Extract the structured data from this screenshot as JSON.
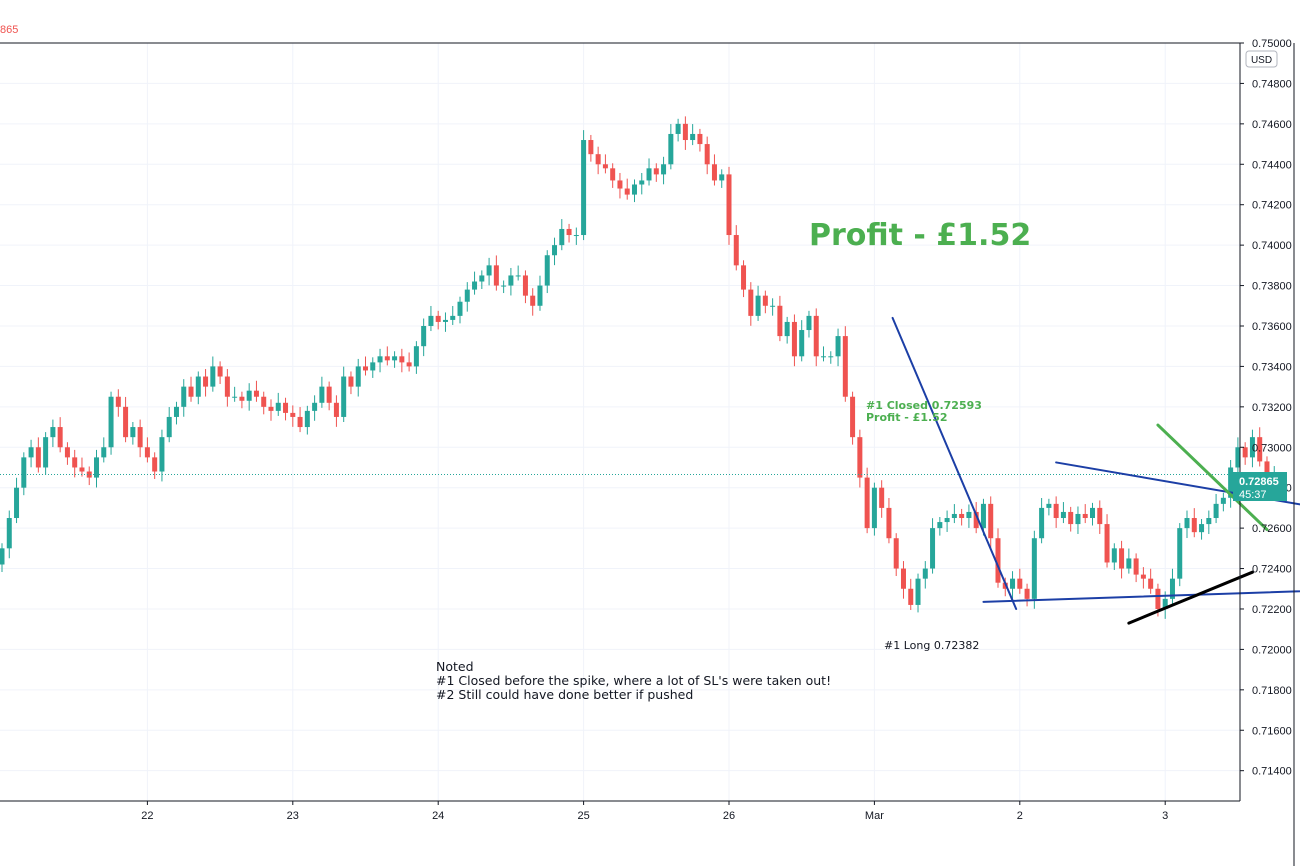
{
  "header": {
    "last_value_fragment": "865"
  },
  "currency_badge": "USD",
  "colors": {
    "up": "#26a69a",
    "down": "#ef5350",
    "trendline": "#1c3fa6",
    "entry_line": "#000000",
    "exit_line": "#4caf50",
    "profit_text": "#4caf50",
    "price_tag": "#26a69a",
    "grid": "#f0f3fa"
  },
  "annotations": {
    "profit_title": "Profit - £1.52",
    "close_line1": "#1 Closed 0.72593",
    "close_line2": "Profit - £1.52",
    "long_label": "#1 Long 0.72382",
    "notes": [
      "Noted",
      "#1  Closed before the spike, where a lot of SL's were taken out!",
      "#2  Still could have done better if pushed"
    ]
  },
  "price_tag": {
    "price": "0.72865",
    "countdown": "45:37"
  },
  "chart_data": {
    "type": "candlestick",
    "title": "",
    "y_axis_side": "right",
    "ylim": [
      0.7125,
      0.75
    ],
    "y_ticks": [
      "0.75000",
      "0.74800",
      "0.74600",
      "0.74400",
      "0.74200",
      "0.74000",
      "0.73800",
      "0.73600",
      "0.73400",
      "0.73200",
      "0.73000",
      "0.72800",
      "0.72600",
      "0.72400",
      "0.72200",
      "0.72000",
      "0.71800",
      "0.71600",
      "0.71400"
    ],
    "x_ticks": [
      {
        "label": "22",
        "index": 20
      },
      {
        "label": "23",
        "index": 40
      },
      {
        "label": "24",
        "index": 60
      },
      {
        "label": "25",
        "index": 80
      },
      {
        "label": "26",
        "index": 100
      },
      {
        "label": "Mar",
        "index": 120
      },
      {
        "label": "2",
        "index": 140
      },
      {
        "label": "3",
        "index": 160
      }
    ],
    "last_price": 0.72865,
    "close_series": [
      0.725,
      0.7265,
      0.728,
      0.7295,
      0.73,
      0.729,
      0.7305,
      0.731,
      0.73,
      0.7295,
      0.729,
      0.7288,
      0.7285,
      0.7295,
      0.73,
      0.7325,
      0.732,
      0.7305,
      0.731,
      0.73,
      0.7295,
      0.7288,
      0.7305,
      0.7315,
      0.732,
      0.733,
      0.7325,
      0.7335,
      0.733,
      0.734,
      0.7335,
      0.7325,
      0.7325,
      0.7323,
      0.7328,
      0.7325,
      0.732,
      0.7318,
      0.7322,
      0.7317,
      0.7315,
      0.731,
      0.7318,
      0.7322,
      0.733,
      0.7322,
      0.7315,
      0.7335,
      0.733,
      0.734,
      0.7338,
      0.7342,
      0.7345,
      0.7343,
      0.7345,
      0.7342,
      0.734,
      0.735,
      0.736,
      0.7365,
      0.7362,
      0.7363,
      0.7365,
      0.7372,
      0.7378,
      0.7382,
      0.7385,
      0.739,
      0.738,
      0.738,
      0.7385,
      0.7385,
      0.7375,
      0.737,
      0.738,
      0.7395,
      0.74,
      0.7408,
      0.7405,
      0.7405,
      0.7452,
      0.7445,
      0.744,
      0.7438,
      0.7432,
      0.7428,
      0.7425,
      0.743,
      0.7432,
      0.7438,
      0.7435,
      0.744,
      0.7455,
      0.746,
      0.7452,
      0.7455,
      0.745,
      0.744,
      0.7432,
      0.7435,
      0.7405,
      0.739,
      0.7378,
      0.7365,
      0.7375,
      0.737,
      0.737,
      0.7355,
      0.7362,
      0.7345,
      0.7358,
      0.7365,
      0.7345,
      0.7345,
      0.7345,
      0.7355,
      0.7325,
      0.7305,
      0.7285,
      0.726,
      0.728,
      0.727,
      0.7255,
      0.724,
      0.723,
      0.7222,
      0.7235,
      0.724,
      0.726,
      0.7263,
      0.7265,
      0.7267,
      0.7265,
      0.7268,
      0.726,
      0.7272,
      0.7255,
      0.7233,
      0.723,
      0.7235,
      0.723,
      0.7225,
      0.7255,
      0.727,
      0.7272,
      0.7265,
      0.7268,
      0.7262,
      0.7267,
      0.7265,
      0.727,
      0.7262,
      0.7243,
      0.725,
      0.724,
      0.7245,
      0.7237,
      0.7235,
      0.723,
      0.722,
      0.7225,
      0.7235,
      0.726,
      0.7265,
      0.7258,
      0.7262,
      0.7265,
      0.7272,
      0.7275,
      0.729,
      0.73,
      0.7295,
      0.7305,
      0.7293,
      0.7285,
      0.7287
    ],
    "trendlines": [
      {
        "name": "descending-trendline",
        "from": {
          "index": 122.5,
          "price": 0.7364
        },
        "to": {
          "index": 139.5,
          "price": 0.722
        }
      },
      {
        "name": "upper-triangle-line",
        "from": {
          "index": 145,
          "price": 0.72925
        },
        "to": {
          "index": 193,
          "price": 0.72628
        }
      },
      {
        "name": "lower-triangle-line",
        "from": {
          "index": 135,
          "price": 0.72235
        },
        "to": {
          "index": 193,
          "price": 0.72305
        }
      },
      {
        "name": "entry-line",
        "from": {
          "index": 155,
          "price": 0.7213
        },
        "to": {
          "index": 172,
          "price": 0.72382
        }
      },
      {
        "name": "exit-line",
        "from": {
          "index": 159,
          "price": 0.7311
        },
        "to": {
          "index": 174,
          "price": 0.72593
        }
      }
    ]
  }
}
